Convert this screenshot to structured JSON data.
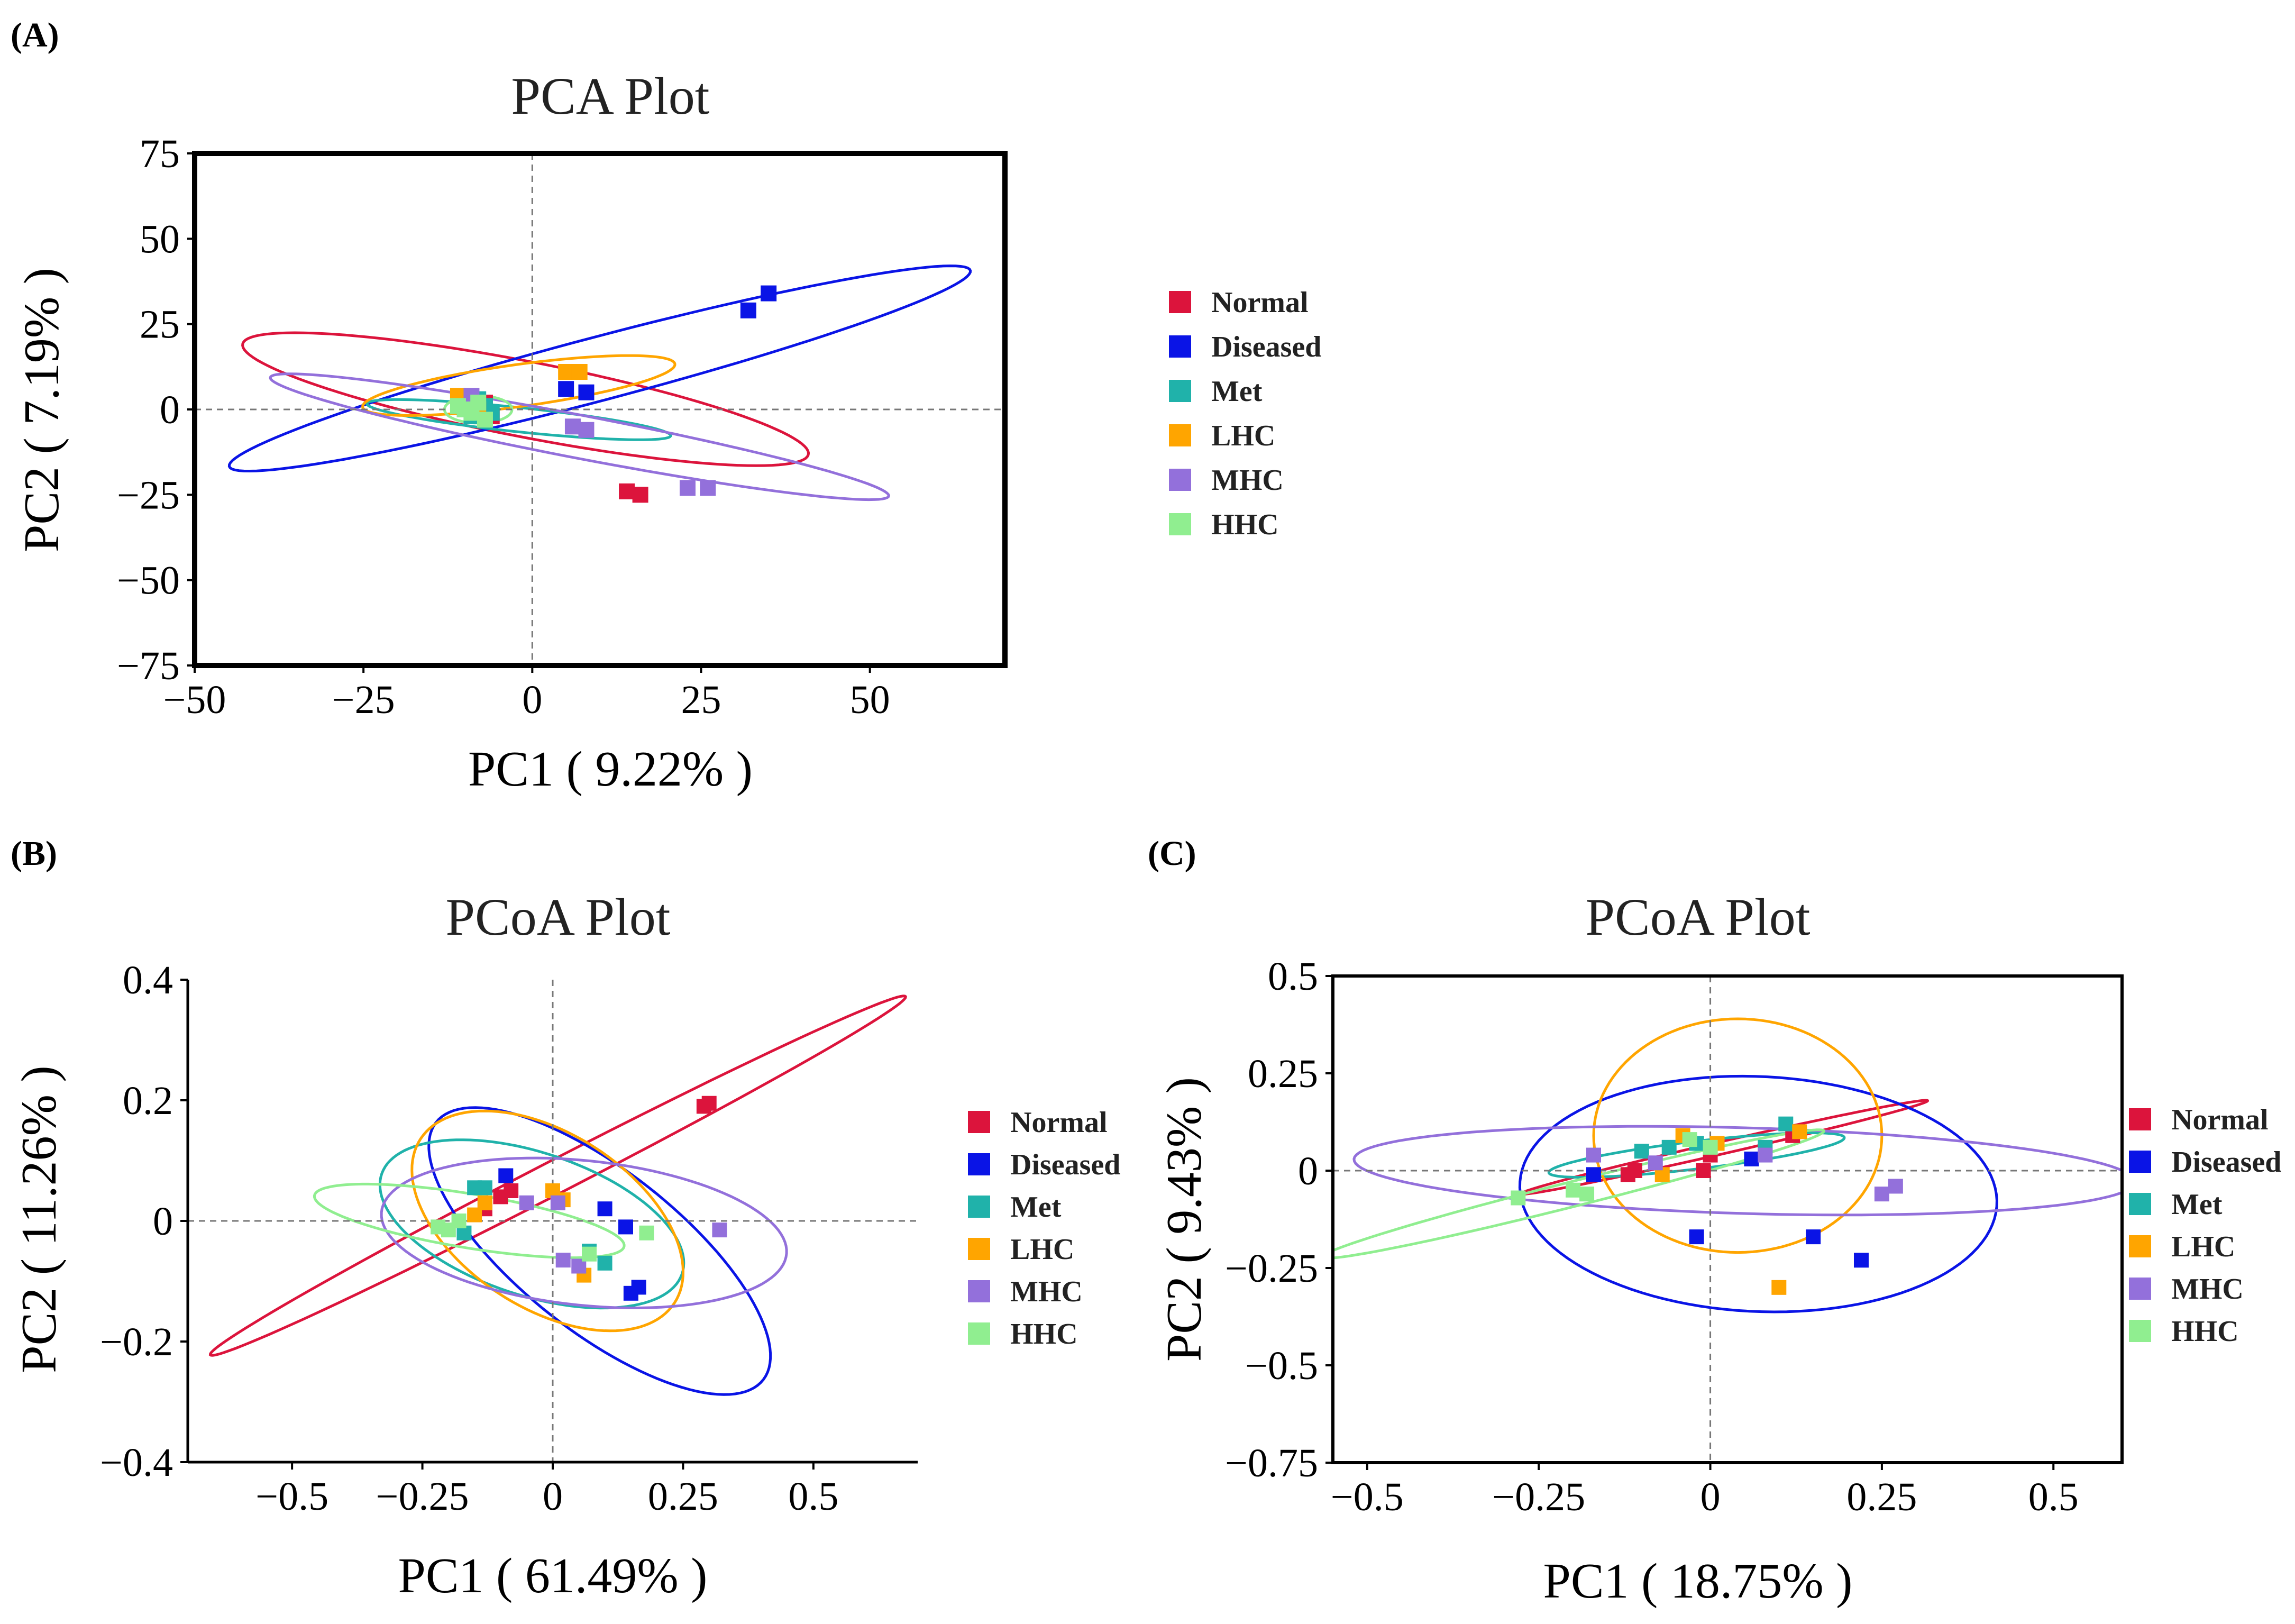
{
  "panels": [
    {
      "label": "(A)",
      "title": "PCA Plot",
      "xlabel": "PC1 ( 9.22% )",
      "ylabel": "PC2 ( 7.19% )"
    },
    {
      "label": "(B)",
      "title": "PCoA Plot",
      "xlabel": "PC1 ( 61.49% )",
      "ylabel": "PC2 ( 11.26% )"
    },
    {
      "label": "(C)",
      "title": "PCoA Plot",
      "xlabel": "PC1 ( 18.75% )",
      "ylabel": "PC2 ( 9.43% )"
    }
  ],
  "legend": [
    {
      "name": "Normal",
      "color": "#dc143c"
    },
    {
      "name": "Diseased",
      "color": "#0a14e6"
    },
    {
      "name": "Met",
      "color": "#20b2aa"
    },
    {
      "name": "LHC",
      "color": "#ffa500"
    },
    {
      "name": "MHC",
      "color": "#9370db"
    },
    {
      "name": "HHC",
      "color": "#90ee90"
    }
  ],
  "chart_data": [
    {
      "type": "scatter",
      "title": "PCA Plot",
      "xlabel": "PC1 ( 9.22% )",
      "ylabel": "PC2 ( 7.19% )",
      "xlim": [
        -50,
        70
      ],
      "ylim": [
        -75,
        75
      ],
      "xticks": [
        -50,
        -25,
        0,
        25,
        50
      ],
      "xtick_labels": [
        "−50",
        "−25",
        "0",
        "25",
        "50"
      ],
      "yticks": [
        75,
        50,
        25,
        0,
        -25,
        -50,
        -75
      ],
      "ytick_labels": [
        "75",
        "50",
        "25",
        "0",
        "−25",
        "−50",
        "−75"
      ],
      "series": [
        {
          "name": "Normal",
          "points": [
            [
              -7,
              2
            ],
            [
              -8,
              1
            ],
            [
              -6,
              -2
            ],
            [
              14,
              -24
            ],
            [
              16,
              -25
            ]
          ]
        },
        {
          "name": "Diseased",
          "points": [
            [
              32,
              29
            ],
            [
              35,
              34
            ],
            [
              5,
              6
            ],
            [
              8,
              5
            ],
            [
              -9,
              1
            ]
          ]
        },
        {
          "name": "Met",
          "points": [
            [
              -8,
              3
            ],
            [
              -10,
              0
            ],
            [
              -6,
              -1
            ],
            [
              -9,
              -2
            ],
            [
              -7,
              1
            ]
          ]
        },
        {
          "name": "LHC",
          "points": [
            [
              5,
              11
            ],
            [
              7,
              11
            ],
            [
              -10,
              2
            ],
            [
              -8,
              0
            ],
            [
              -11,
              4
            ]
          ]
        },
        {
          "name": "MHC",
          "points": [
            [
              6,
              -5
            ],
            [
              8,
              -6
            ],
            [
              23,
              -23
            ],
            [
              26,
              -23
            ],
            [
              -9,
              4
            ]
          ]
        },
        {
          "name": "HHC",
          "points": [
            [
              -11,
              1
            ],
            [
              -9,
              -1
            ],
            [
              -7,
              -3
            ],
            [
              -10,
              0
            ],
            [
              -8,
              2
            ]
          ]
        }
      ],
      "ellipses": [
        {
          "group": "Normal",
          "cx": -1,
          "cy": 3,
          "rx": 45,
          "ry": 10.5,
          "angle_deg": -22
        },
        {
          "group": "Diseased",
          "cx": 10,
          "cy": 12,
          "rx": 62,
          "ry": 8.5,
          "angle_deg": 28
        },
        {
          "group": "Met",
          "cx": -2,
          "cy": -3,
          "rx": 23,
          "ry": 3.5,
          "angle_deg": -12
        },
        {
          "group": "LHC",
          "cx": -2,
          "cy": 7,
          "rx": 24,
          "ry": 6,
          "angle_deg": 16
        },
        {
          "group": "MHC",
          "cx": 7,
          "cy": -8,
          "rx": 49,
          "ry": 6,
          "angle_deg": -21
        },
        {
          "group": "HHC",
          "cx": -8,
          "cy": 0,
          "rx": 5,
          "ry": 4,
          "angle_deg": 0
        }
      ]
    },
    {
      "type": "scatter",
      "title": "PCoA Plot",
      "xlabel": "PC1 ( 61.49% )",
      "ylabel": "PC2 ( 11.26% )",
      "xlim": [
        -0.7,
        0.7
      ],
      "ylim": [
        -0.4,
        0.4
      ],
      "xticks": [
        -0.5,
        -0.25,
        0,
        0.25,
        0.5
      ],
      "xtick_labels": [
        "−0.5",
        "−0.25",
        "0",
        "0.25",
        "0.5"
      ],
      "yticks": [
        0.4,
        0.2,
        0,
        -0.2,
        -0.4
      ],
      "ytick_labels": [
        "0.4",
        "0.2",
        "0",
        "−0.2",
        "−0.4"
      ],
      "series": [
        {
          "name": "Normal",
          "points": [
            [
              0.29,
              0.19
            ],
            [
              0.3,
              0.195
            ],
            [
              -0.1,
              0.04
            ],
            [
              -0.08,
              0.05
            ],
            [
              -0.13,
              0.02
            ]
          ]
        },
        {
          "name": "Diseased",
          "points": [
            [
              -0.09,
              0.075
            ],
            [
              0.1,
              0.02
            ],
            [
              0.14,
              -0.01
            ],
            [
              0.15,
              -0.12
            ],
            [
              0.165,
              -0.11
            ]
          ]
        },
        {
          "name": "Met",
          "points": [
            [
              -0.15,
              0.055
            ],
            [
              -0.13,
              0.055
            ],
            [
              -0.17,
              -0.02
            ],
            [
              0.1,
              -0.07
            ],
            [
              0.07,
              -0.05
            ]
          ]
        },
        {
          "name": "LHC",
          "points": [
            [
              0.0,
              0.05
            ],
            [
              -0.15,
              0.01
            ],
            [
              -0.13,
              0.03
            ],
            [
              0.06,
              -0.09
            ],
            [
              0.02,
              0.035
            ]
          ]
        },
        {
          "name": "MHC",
          "points": [
            [
              -0.05,
              0.03
            ],
            [
              0.01,
              0.03
            ],
            [
              0.02,
              -0.065
            ],
            [
              0.05,
              -0.075
            ],
            [
              0.32,
              -0.015
            ]
          ]
        },
        {
          "name": "HHC",
          "points": [
            [
              -0.22,
              -0.01
            ],
            [
              -0.2,
              -0.015
            ],
            [
              0.07,
              -0.055
            ],
            [
              0.18,
              -0.02
            ],
            [
              -0.18,
              0.0
            ]
          ]
        }
      ],
      "ellipses": [
        {
          "group": "Normal",
          "cx": 0.01,
          "cy": 0.075,
          "rx": 0.73,
          "ry": 0.028,
          "angle_deg": 24
        },
        {
          "group": "Diseased",
          "cx": 0.09,
          "cy": -0.05,
          "rx": 0.38,
          "ry": 0.14,
          "angle_deg": -33
        },
        {
          "group": "Met",
          "cx": -0.04,
          "cy": -0.005,
          "rx": 0.3,
          "ry": 0.12,
          "angle_deg": -15
        },
        {
          "group": "LHC",
          "cx": -0.01,
          "cy": 0.0,
          "rx": 0.28,
          "ry": 0.15,
          "angle_deg": -26
        },
        {
          "group": "MHC",
          "cx": 0.06,
          "cy": -0.02,
          "rx": 0.39,
          "ry": 0.12,
          "angle_deg": -5
        },
        {
          "group": "HHC",
          "cx": -0.16,
          "cy": 0.0,
          "rx": 0.3,
          "ry": 0.045,
          "angle_deg": -8
        }
      ]
    },
    {
      "type": "scatter",
      "title": "PCoA Plot",
      "xlabel": "PC1 ( 18.75% )",
      "ylabel": "PC2 ( 9.43% )",
      "xlim": [
        -0.55,
        0.6
      ],
      "ylim": [
        -0.75,
        0.5
      ],
      "xticks": [
        -0.5,
        -0.25,
        0,
        0.25,
        0.5
      ],
      "xtick_labels": [
        "−0.5",
        "−0.25",
        "0",
        "0.25",
        "0.5"
      ],
      "yticks": [
        0.5,
        0.25,
        0,
        -0.25,
        -0.5,
        -0.75
      ],
      "ytick_labels": [
        "0.5",
        "0.25",
        "0",
        "−0.25",
        "−0.5",
        "−0.75"
      ],
      "series": [
        {
          "name": "Normal",
          "points": [
            [
              -0.12,
              -0.01
            ],
            [
              -0.11,
              0.0
            ],
            [
              -0.01,
              0.0
            ],
            [
              0.0,
              0.04
            ],
            [
              0.12,
              0.09
            ]
          ]
        },
        {
          "name": "Diseased",
          "points": [
            [
              -0.17,
              -0.01
            ],
            [
              -0.02,
              -0.17
            ],
            [
              0.06,
              0.03
            ],
            [
              0.15,
              -0.17
            ],
            [
              0.22,
              -0.23
            ]
          ]
        },
        {
          "name": "Met",
          "points": [
            [
              -0.1,
              0.05
            ],
            [
              -0.02,
              0.07
            ],
            [
              0.11,
              0.12
            ],
            [
              0.08,
              0.06
            ],
            [
              -0.06,
              0.06
            ]
          ]
        },
        {
          "name": "LHC",
          "points": [
            [
              -0.04,
              0.09
            ],
            [
              -0.07,
              -0.01
            ],
            [
              0.13,
              0.1
            ],
            [
              0.1,
              -0.3
            ],
            [
              0.01,
              0.07
            ]
          ]
        },
        {
          "name": "MHC",
          "points": [
            [
              -0.17,
              0.04
            ],
            [
              -0.08,
              0.02
            ],
            [
              0.08,
              0.04
            ],
            [
              0.25,
              -0.06
            ],
            [
              0.27,
              -0.04
            ]
          ]
        },
        {
          "name": "HHC",
          "points": [
            [
              -0.28,
              -0.07
            ],
            [
              -0.2,
              -0.05
            ],
            [
              -0.18,
              -0.06
            ],
            [
              -0.03,
              0.08
            ],
            [
              0.0,
              0.06
            ]
          ]
        }
      ],
      "ellipses": [
        {
          "group": "Normal",
          "cx": 0.02,
          "cy": 0.06,
          "rx": 0.32,
          "ry": 0.015,
          "angle_deg": 22
        },
        {
          "group": "Diseased",
          "cx": 0.07,
          "cy": -0.06,
          "rx": 0.35,
          "ry": 0.3,
          "angle_deg": -13
        },
        {
          "group": "Met",
          "cx": -0.02,
          "cy": 0.04,
          "rx": 0.22,
          "ry": 0.035,
          "angle_deg": 12
        },
        {
          "group": "LHC",
          "cx": 0.04,
          "cy": 0.09,
          "rx": 0.21,
          "ry": 0.3,
          "angle_deg": 0
        },
        {
          "group": "MHC",
          "cx": 0.05,
          "cy": 0.0,
          "rx": 0.57,
          "ry": 0.11,
          "angle_deg": -3
        },
        {
          "group": "HHC",
          "cx": -0.2,
          "cy": -0.06,
          "rx": 0.4,
          "ry": 0.03,
          "angle_deg": 24
        }
      ]
    }
  ]
}
